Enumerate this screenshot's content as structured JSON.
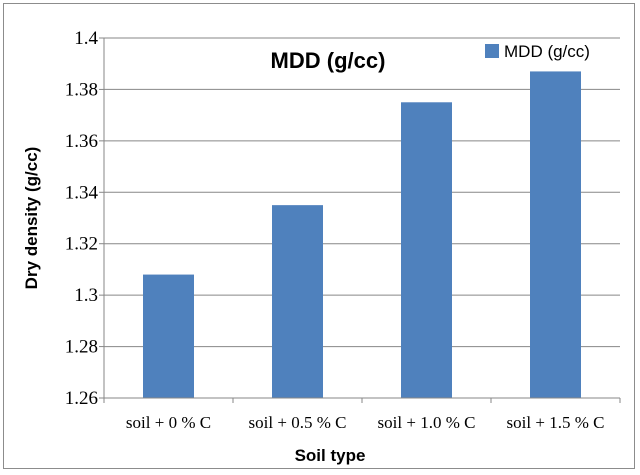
{
  "chart_data": {
    "type": "bar",
    "title": "MDD (g/cc)",
    "xlabel": "Soil type",
    "ylabel": "Dry density (g/cc)",
    "categories": [
      "soil + 0 % C",
      "soil + 0.5 % C",
      "soil + 1.0 % C",
      "soil + 1.5 % C"
    ],
    "series": [
      {
        "name": "MDD (g/cc)",
        "values": [
          1.308,
          1.335,
          1.375,
          1.387
        ],
        "color": "#4f81bd"
      }
    ],
    "ylim": [
      1.26,
      1.4
    ],
    "yticks": [
      "1.26",
      "1.28",
      "1.3",
      "1.32",
      "1.34",
      "1.36",
      "1.38",
      "1.4"
    ],
    "grid": true,
    "legend": "top-right"
  }
}
